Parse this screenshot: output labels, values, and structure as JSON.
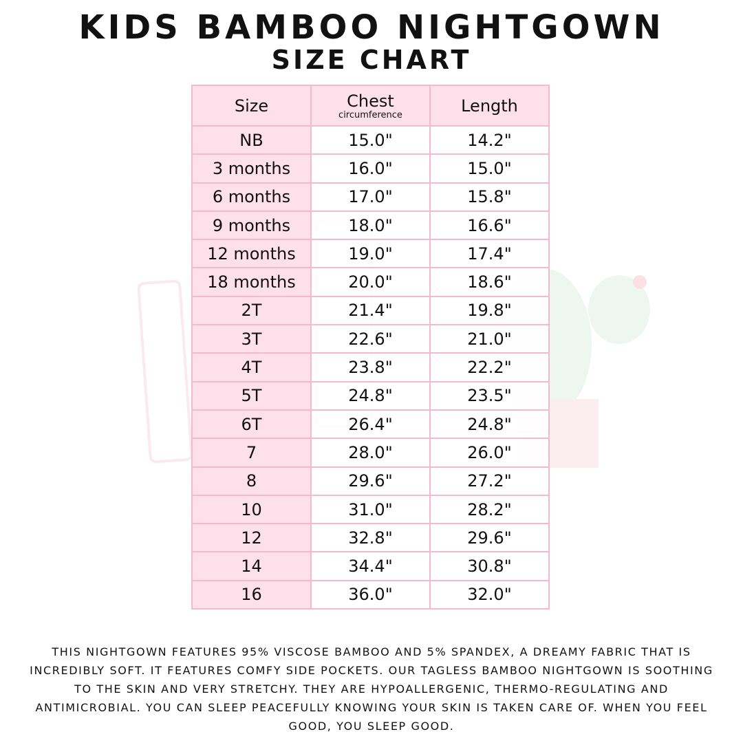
{
  "header": {
    "title": "KIDS BAMBOO NIGHTGOWN",
    "subtitle": "SIZE CHART"
  },
  "table": {
    "columns": [
      {
        "label": "Size"
      },
      {
        "label": "Chest",
        "sublabel": "circumference"
      },
      {
        "label": "Length"
      }
    ],
    "rows": [
      {
        "size": "NB",
        "chest": "15.0\"",
        "length": "14.2\""
      },
      {
        "size": "3 months",
        "chest": "16.0\"",
        "length": "15.0\""
      },
      {
        "size": "6 months",
        "chest": "17.0\"",
        "length": "15.8\""
      },
      {
        "size": "9 months",
        "chest": "18.0\"",
        "length": "16.6\""
      },
      {
        "size": "12 months",
        "chest": "19.0\"",
        "length": "17.4\""
      },
      {
        "size": "18 months",
        "chest": "20.0\"",
        "length": "18.6\""
      },
      {
        "size": "2T",
        "chest": "21.4\"",
        "length": "19.8\""
      },
      {
        "size": "3T",
        "chest": "22.6\"",
        "length": "21.0\""
      },
      {
        "size": "4T",
        "chest": "23.8\"",
        "length": "22.2\""
      },
      {
        "size": "5T",
        "chest": "24.8\"",
        "length": "23.5\""
      },
      {
        "size": "6T",
        "chest": "26.4\"",
        "length": "24.8\""
      },
      {
        "size": "7",
        "chest": "28.0\"",
        "length": "26.0\""
      },
      {
        "size": "8",
        "chest": "29.6\"",
        "length": "27.2\""
      },
      {
        "size": "10",
        "chest": "31.0\"",
        "length": "28.2\""
      },
      {
        "size": "12",
        "chest": "32.8\"",
        "length": "29.6\""
      },
      {
        "size": "14",
        "chest": "34.4\"",
        "length": "30.8\""
      },
      {
        "size": "16",
        "chest": "36.0\"",
        "length": "32.0\""
      }
    ]
  },
  "description": "This nightgown features 95% viscose bamboo and 5% spandex, a dreamy fabric that is incredibly soft. It features comfy side pockets. Our tagless bamboo nightgown is soothing to the skin and very stretchy. They are hypoallergenic, thermo-regulating and antimicrobial. You can sleep peacefully knowing your skin is taken care of. When you feel good, you sleep good.",
  "colors": {
    "header_fill": "#fde0ea",
    "border": "#f5b9cc",
    "text": "#111111"
  }
}
